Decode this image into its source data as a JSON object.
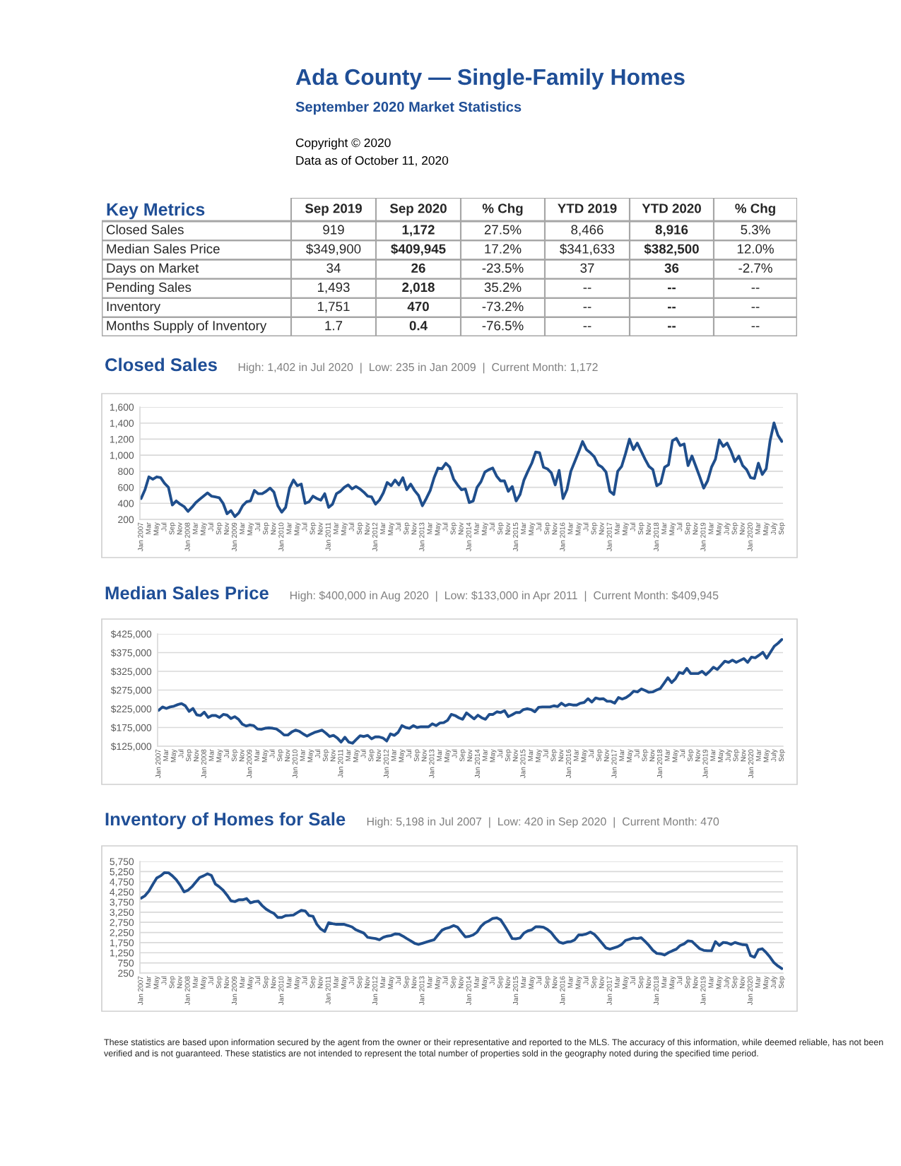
{
  "chart_data": [
    {
      "type": "other",
      "title": "Ada County — Single-Family Homes",
      "subtitle": "September 2020 Market Statistics",
      "annotations": [
        "Copyright © 2020",
        "Data as of October 11, 2020"
      ]
    },
    {
      "type": "other",
      "title": "Key Metrics",
      "categories": [
        "Sep 2019",
        "Sep 2020",
        "% Chg",
        "YTD 2019",
        "YTD 2020",
        "% Chg"
      ],
      "y_categories": [
        "Closed Sales",
        "Median Sales Price",
        "Days on Market",
        "Pending Sales",
        "Inventory",
        "Months Supply of Inventory"
      ],
      "cell_labels": [
        [
          "919",
          "1,172",
          "27.5%",
          "8,466",
          "8,916",
          "5.3%"
        ],
        [
          "$349,900",
          "$409,945",
          "17.2%",
          "$341,633",
          "$382,500",
          "12.0%"
        ],
        [
          "34",
          "26",
          "-23.5%",
          "37",
          "36",
          "-2.7%"
        ],
        [
          "1,493",
          "2,018",
          "35.2%",
          "--",
          "--",
          "--"
        ],
        [
          "1,751",
          "470",
          "-73.2%",
          "--",
          "--",
          "--"
        ],
        [
          "1.7",
          "0.4",
          "-76.5%",
          "--",
          "--",
          "--"
        ]
      ]
    },
    {
      "type": "line",
      "title": "Closed Sales",
      "subtitle": "High: 1,402 in Jul 2020  |  Low: 235 in Jan 2009  |  Current Month: 1,172",
      "grid": "y",
      "categories": [
        "Jan 2007",
        null,
        "Mar",
        null,
        "May",
        null,
        "Jul",
        null,
        "Sep",
        null,
        "Nov",
        null,
        "Jan 2008",
        null,
        "Mar",
        null,
        "May",
        null,
        "Jul",
        null,
        "Sep",
        null,
        "Nov",
        null,
        "Jan 2009",
        null,
        "Mar",
        null,
        "May",
        null,
        "Jul",
        null,
        "Sep",
        null,
        "Nov",
        null,
        "Jan 2010",
        null,
        "Mar",
        null,
        "May",
        null,
        "Jul",
        null,
        "Sep",
        null,
        "Nov",
        null,
        "Jan 2011",
        null,
        "Mar",
        null,
        "May",
        null,
        "Jul",
        null,
        "Sep",
        null,
        "Nov",
        null,
        "Jan 2012",
        null,
        "Mar",
        null,
        "May",
        null,
        "Jul",
        null,
        "Sep",
        null,
        "Nov",
        null,
        "Jan 2013",
        null,
        "Mar",
        null,
        "May",
        null,
        "Jul",
        null,
        "Sep",
        null,
        "Nov",
        null,
        "Jan 2014",
        null,
        "Mar",
        null,
        "May",
        null,
        "Jul",
        null,
        "Sep",
        null,
        "Nov",
        null,
        "Jan 2015",
        null,
        "Mar",
        null,
        "May",
        null,
        "Jul",
        null,
        "Sep",
        null,
        "Nov",
        null,
        "Jan 2016",
        null,
        "Mar",
        null,
        "May",
        null,
        "Jul",
        null,
        "Sep",
        null,
        "Nov",
        null,
        "Jan 2017",
        null,
        "Mar",
        null,
        "May",
        null,
        "Jul",
        null,
        "Sep",
        null,
        "Nov",
        null,
        "Jan 2018",
        null,
        "Mar",
        null,
        "May",
        null,
        "Jul",
        null,
        "Sep",
        null,
        "Nov",
        null,
        "Jan 2019",
        null,
        "Mar",
        null,
        "May",
        null,
        "July",
        null,
        "Sep",
        null,
        "Nov",
        null,
        "Jan 2020",
        null,
        "Mar",
        null,
        "May",
        null,
        "July",
        null,
        "Sep"
      ],
      "ylim": [
        200,
        1600
      ],
      "yticks": [
        200,
        400,
        600,
        800,
        {
          "value": 1000,
          "label": "1,000"
        },
        {
          "value": 1200,
          "label": "1,200"
        },
        {
          "value": 1400,
          "label": "1,400"
        },
        {
          "value": 1600,
          "label": "1,600"
        }
      ],
      "series": [
        {
          "color": "#1f4e8c",
          "values": [
            460,
            570,
            730,
            700,
            730,
            720,
            650,
            600,
            380,
            430,
            390,
            360,
            300,
            350,
            410,
            450,
            490,
            530,
            490,
            480,
            470,
            400,
            270,
            310,
            235,
            280,
            370,
            420,
            430,
            560,
            520,
            520,
            550,
            590,
            540,
            370,
            290,
            350,
            590,
            690,
            620,
            640,
            400,
            420,
            490,
            460,
            440,
            520,
            350,
            390,
            520,
            550,
            600,
            630,
            580,
            610,
            580,
            540,
            490,
            480,
            390,
            440,
            530,
            660,
            620,
            690,
            630,
            720,
            570,
            640,
            560,
            500,
            370,
            460,
            560,
            720,
            840,
            830,
            900,
            850,
            700,
            630,
            570,
            580,
            410,
            430,
            600,
            670,
            790,
            820,
            840,
            740,
            680,
            680,
            550,
            610,
            430,
            510,
            690,
            800,
            900,
            1040,
            1030,
            850,
            830,
            780,
            630,
            810,
            460,
            570,
            800,
            920,
            1040,
            1170,
            1070,
            1030,
            980,
            880,
            850,
            790,
            550,
            510,
            800,
            860,
            1020,
            1200,
            1070,
            1150,
            1050,
            950,
            860,
            820,
            620,
            650,
            850,
            880,
            1180,
            1210,
            1120,
            1140,
            870,
            990,
            860,
            730,
            590,
            680,
            850,
            950,
            1190,
            1110,
            1150,
            1050,
            920,
            990,
            870,
            820,
            720,
            710,
            900,
            760,
            830,
            1180,
            1402,
            1250,
            1172
          ]
        }
      ]
    },
    {
      "type": "line",
      "title": "Median Sales Price",
      "subtitle": "High: $400,000 in Aug 2020  |  Low: $133,000 in Apr 2011  |  Current Month: $409,945",
      "grid": "y",
      "categories": [
        "Jan 2007",
        null,
        "Mar",
        null,
        "May",
        null,
        "Jul",
        null,
        "Sep",
        null,
        "Nov",
        null,
        "Jan 2008",
        null,
        "Mar",
        null,
        "May",
        null,
        "Jul",
        null,
        "Sep",
        null,
        "Nov",
        null,
        "Jan 2009",
        null,
        "Mar",
        null,
        "May",
        null,
        "Jul",
        null,
        "Sep",
        null,
        "Nov",
        null,
        "Jan 2010",
        null,
        "Mar",
        null,
        "May",
        null,
        "Jul",
        null,
        "Sep",
        null,
        "Nov",
        null,
        "Jan 2011",
        null,
        "Mar",
        null,
        "May",
        null,
        "Jul",
        null,
        "Sep",
        null,
        "Nov",
        null,
        "Jan 2012",
        null,
        "Mar",
        null,
        "May",
        null,
        "Jul",
        null,
        "Sep",
        null,
        "Nov",
        null,
        "Jan 2013",
        null,
        "Mar",
        null,
        "May",
        null,
        "Jul",
        null,
        "Sep",
        null,
        "Nov",
        null,
        "Jan 2014",
        null,
        "Mar",
        null,
        "May",
        null,
        "Jul",
        null,
        "Sep",
        null,
        "Nov",
        null,
        "Jan 2015",
        null,
        "Mar",
        null,
        "May",
        null,
        "Jul",
        null,
        "Sep",
        null,
        "Nov",
        null,
        "Jan 2016",
        null,
        "Mar",
        null,
        "May",
        null,
        "Jul",
        null,
        "Sep",
        null,
        "Nov",
        null,
        "Jan 2017",
        null,
        "Mar",
        null,
        "May",
        null,
        "Jul",
        null,
        "Sep",
        null,
        "Nov",
        null,
        "Jan 2018",
        null,
        "Mar",
        null,
        "May",
        null,
        "Jul",
        null,
        "Sep",
        null,
        "Nov",
        null,
        "Jan 2019",
        null,
        "Mar",
        null,
        "May",
        null,
        "July",
        null,
        "Sep",
        null,
        "Nov",
        null,
        "Jan 2020",
        null,
        "Mar",
        null,
        "May",
        null,
        "July",
        null,
        "Sep"
      ],
      "ylim": [
        125000,
        425000
      ],
      "yticks": [
        {
          "value": 125000,
          "label": "$125,000"
        },
        {
          "value": 175000,
          "label": "$175,000"
        },
        {
          "value": 225000,
          "label": "$225,000"
        },
        {
          "value": 275000,
          "label": "$275,000"
        },
        {
          "value": 325000,
          "label": "$325,000"
        },
        {
          "value": 375000,
          "label": "$375,000"
        },
        {
          "value": 425000,
          "label": "$425,000"
        }
      ],
      "series": [
        {
          "color": "#1f4e8c",
          "values": [
            221000,
            230000,
            226000,
            230000,
            232000,
            236000,
            239000,
            233000,
            218000,
            226000,
            209000,
            207000,
            216000,
            202000,
            207000,
            207000,
            202000,
            210000,
            208000,
            199000,
            204000,
            197000,
            184000,
            179000,
            182000,
            180000,
            171000,
            170000,
            173000,
            174000,
            173000,
            171000,
            164000,
            155000,
            155000,
            163000,
            168000,
            165000,
            158000,
            152000,
            157000,
            162000,
            165000,
            168000,
            160000,
            151000,
            154000,
            147000,
            136000,
            149000,
            136000,
            133000,
            143000,
            153000,
            151000,
            154000,
            145000,
            150000,
            150000,
            147000,
            139000,
            158000,
            154000,
            162000,
            180000,
            175000,
            173000,
            180000,
            175000,
            177000,
            177000,
            177000,
            185000,
            180000,
            187000,
            188000,
            194000,
            210000,
            207000,
            201000,
            197000,
            214000,
            206000,
            198000,
            208000,
            201000,
            197000,
            210000,
            210000,
            217000,
            215000,
            220000,
            204000,
            209000,
            215000,
            215000,
            223000,
            225000,
            223000,
            217000,
            229000,
            230000,
            230000,
            230000,
            233000,
            231000,
            240000,
            233000,
            237000,
            235000,
            235000,
            240000,
            242000,
            252000,
            243000,
            254000,
            251000,
            252000,
            245000,
            245000,
            240000,
            255000,
            251000,
            255000,
            262000,
            272000,
            270000,
            278000,
            274000,
            269000,
            270000,
            275000,
            279000,
            293000,
            308000,
            295000,
            305000,
            322000,
            319000,
            333000,
            319000,
            319000,
            319000,
            325000,
            316000,
            325000,
            336000,
            330000,
            341000,
            352000,
            349000,
            355000,
            349000,
            354000,
            359000,
            349000,
            363000,
            361000,
            368000,
            376000,
            360000,
            376000,
            392000,
            400000,
            409945
          ]
        }
      ]
    },
    {
      "type": "line",
      "title": "Inventory of Homes for Sale",
      "subtitle": "High: 5,198 in Jul 2007  |  Low: 420 in Sep 2020  |  Current Month: 470",
      "grid": "y",
      "categories": [
        "Jan 2007",
        null,
        "Mar",
        null,
        "May",
        null,
        "Jul",
        null,
        "Sep",
        null,
        "Nov",
        null,
        "Jan 2008",
        null,
        "Mar",
        null,
        "May",
        null,
        "Jul",
        null,
        "Sep",
        null,
        "Nov",
        null,
        "Jan 2009",
        null,
        "Mar",
        null,
        "May",
        null,
        "Jul",
        null,
        "Sep",
        null,
        "Nov",
        null,
        "Jan 2010",
        null,
        "Mar",
        null,
        "May",
        null,
        "Jul",
        null,
        "Sep",
        null,
        "Nov",
        null,
        "Jan 2011",
        null,
        "Mar",
        null,
        "May",
        null,
        "Jul",
        null,
        "Sep",
        null,
        "Nov",
        null,
        "Jan 2012",
        null,
        "Mar",
        null,
        "May",
        null,
        "Jul",
        null,
        "Sep",
        null,
        "Nov",
        null,
        "Jan 2013",
        null,
        "Mar",
        null,
        "May",
        null,
        "Jul",
        null,
        "Sep",
        null,
        "Nov",
        null,
        "Jan 2014",
        null,
        "Mar",
        null,
        "May",
        null,
        "Jul",
        null,
        "Sep",
        null,
        "Nov",
        null,
        "Jan 2015",
        null,
        "Mar",
        null,
        "May",
        null,
        "Jul",
        null,
        "Sep",
        null,
        "Nov",
        null,
        "Jan 2016",
        null,
        "Mar",
        null,
        "May",
        null,
        "Jul",
        null,
        "Sep",
        null,
        "Nov",
        null,
        "Jan 2017",
        null,
        "Mar",
        null,
        "May",
        null,
        "Jul",
        null,
        "Sep",
        null,
        "Nov",
        null,
        "Jan 2018",
        null,
        "Mar",
        null,
        "May",
        null,
        "Jul",
        null,
        "Sep",
        null,
        "Nov",
        null,
        "Jan 2019",
        null,
        "Mar",
        null,
        "May",
        null,
        "July",
        null,
        "Sep",
        null,
        "Nov",
        null,
        "Jan 2020",
        null,
        "Mar",
        null,
        "May",
        null,
        "July",
        null,
        "Sep"
      ],
      "ylim": [
        250,
        5750
      ],
      "yticks": [
        250,
        750,
        {
          "value": 1250,
          "label": "1,250"
        },
        {
          "value": 1750,
          "label": "1,750"
        },
        {
          "value": 2250,
          "label": "2,250"
        },
        {
          "value": 2750,
          "label": "2,750"
        },
        {
          "value": 3250,
          "label": "3,250"
        },
        {
          "value": 3750,
          "label": "3,750"
        },
        {
          "value": 4250,
          "label": "4,250"
        },
        {
          "value": 4750,
          "label": "4,750"
        },
        {
          "value": 5250,
          "label": "5,250"
        },
        {
          "value": 5750,
          "label": "5,750"
        }
      ],
      "series": [
        {
          "color": "#1f4e8c",
          "values": [
            3940,
            4060,
            4290,
            4620,
            4930,
            5040,
            5198,
            5190,
            5040,
            4850,
            4580,
            4250,
            4330,
            4500,
            4730,
            4960,
            5040,
            5140,
            5060,
            4640,
            4500,
            4330,
            4090,
            3810,
            3770,
            3860,
            3860,
            3920,
            3710,
            3770,
            3790,
            3570,
            3400,
            3280,
            3190,
            2990,
            2990,
            3080,
            3090,
            3110,
            3230,
            3340,
            3310,
            3080,
            3050,
            2650,
            2420,
            2300,
            2730,
            2680,
            2650,
            2650,
            2650,
            2590,
            2520,
            2380,
            2300,
            2220,
            2010,
            1980,
            1950,
            1890,
            2010,
            2070,
            2100,
            2180,
            2170,
            2070,
            1950,
            1840,
            1720,
            1660,
            1720,
            1780,
            1840,
            1890,
            2130,
            2360,
            2450,
            2500,
            2590,
            2510,
            2270,
            2030,
            2060,
            2130,
            2270,
            2550,
            2730,
            2820,
            2940,
            2970,
            2880,
            2590,
            2280,
            1950,
            1940,
            1980,
            2220,
            2330,
            2380,
            2530,
            2530,
            2510,
            2400,
            2240,
            1990,
            1780,
            1720,
            1780,
            1800,
            1890,
            2130,
            2130,
            2180,
            2270,
            2160,
            1950,
            1720,
            1490,
            1430,
            1490,
            1550,
            1660,
            1860,
            1920,
            1980,
            1950,
            1990,
            1810,
            1610,
            1370,
            1220,
            1200,
            1140,
            1260,
            1350,
            1430,
            1610,
            1690,
            1840,
            1810,
            1630,
            1450,
            1370,
            1350,
            1350,
            1800,
            1610,
            1760,
            1740,
            1660,
            1760,
            1700,
            1650,
            1640,
            1110,
            1030,
            1400,
            1450,
            1260,
            1030,
            760,
            600,
            470
          ]
        }
      ],
      "annotations": [
        "These statistics are based upon information secured by the agent from the owner or their representative and reported to the MLS. The accuracy of this information, while deemed reliable, has not been verified and is not guaranteed. These statistics are not intended to represent the total number of properties sold in the geography noted during the specified time period."
      ]
    }
  ]
}
